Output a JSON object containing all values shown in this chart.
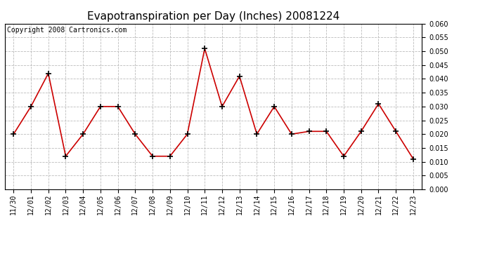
{
  "title": "Evapotranspiration per Day (Inches) 20081224",
  "copyright": "Copyright 2008 Cartronics.com",
  "x_labels": [
    "11/30",
    "12/01",
    "12/02",
    "12/03",
    "12/04",
    "12/05",
    "12/06",
    "12/07",
    "12/08",
    "12/09",
    "12/10",
    "12/11",
    "12/12",
    "12/13",
    "12/14",
    "12/15",
    "12/16",
    "12/17",
    "12/18",
    "12/19",
    "12/20",
    "12/21",
    "12/22",
    "12/23"
  ],
  "y_values": [
    0.02,
    0.03,
    0.042,
    0.012,
    0.02,
    0.03,
    0.03,
    0.02,
    0.012,
    0.012,
    0.02,
    0.051,
    0.03,
    0.041,
    0.02,
    0.03,
    0.02,
    0.021,
    0.021,
    0.012,
    0.021,
    0.031,
    0.021,
    0.011
  ],
  "ylim": [
    0.0,
    0.06
  ],
  "yticks": [
    0.0,
    0.005,
    0.01,
    0.015,
    0.02,
    0.025,
    0.03,
    0.035,
    0.04,
    0.045,
    0.05,
    0.055,
    0.06
  ],
  "line_color": "#cc0000",
  "marker": "+",
  "marker_size": 6,
  "marker_color": "#000000",
  "bg_color": "#ffffff",
  "plot_bg_color": "#ffffff",
  "grid_color": "#bbbbbb",
  "title_fontsize": 11,
  "copyright_fontsize": 7,
  "tick_fontsize": 7,
  "ylabel_fontsize": 7
}
